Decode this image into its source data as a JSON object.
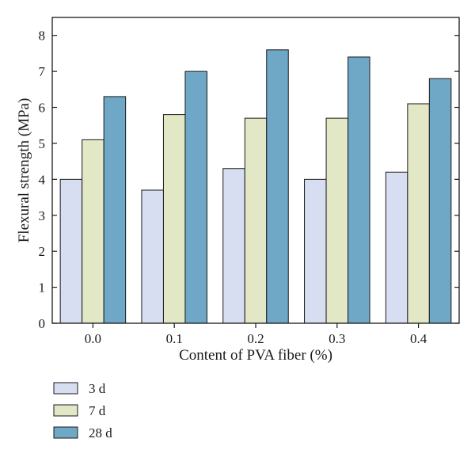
{
  "chart_data": {
    "type": "bar",
    "title": "",
    "xlabel": "Content of PVA fiber (%)",
    "ylabel": "Flexural strength (MPa)",
    "categories": [
      "0.0",
      "0.1",
      "0.2",
      "0.3",
      "0.4"
    ],
    "ylim": [
      0,
      8.5
    ],
    "yticks": [
      "0",
      "1",
      "2",
      "3",
      "4",
      "5",
      "6",
      "7",
      "8"
    ],
    "grid": false,
    "legend_position": "bottom-left",
    "series": [
      {
        "name": "3 d",
        "color": "#d7def2",
        "values": [
          4.0,
          3.7,
          4.3,
          4.0,
          4.2
        ]
      },
      {
        "name": "7 d",
        "color": "#e2e7c5",
        "values": [
          5.1,
          5.8,
          5.7,
          5.7,
          6.1
        ]
      },
      {
        "name": "28 d",
        "color": "#6fa7c6",
        "values": [
          6.3,
          7.0,
          7.6,
          7.4,
          6.8
        ]
      }
    ]
  }
}
